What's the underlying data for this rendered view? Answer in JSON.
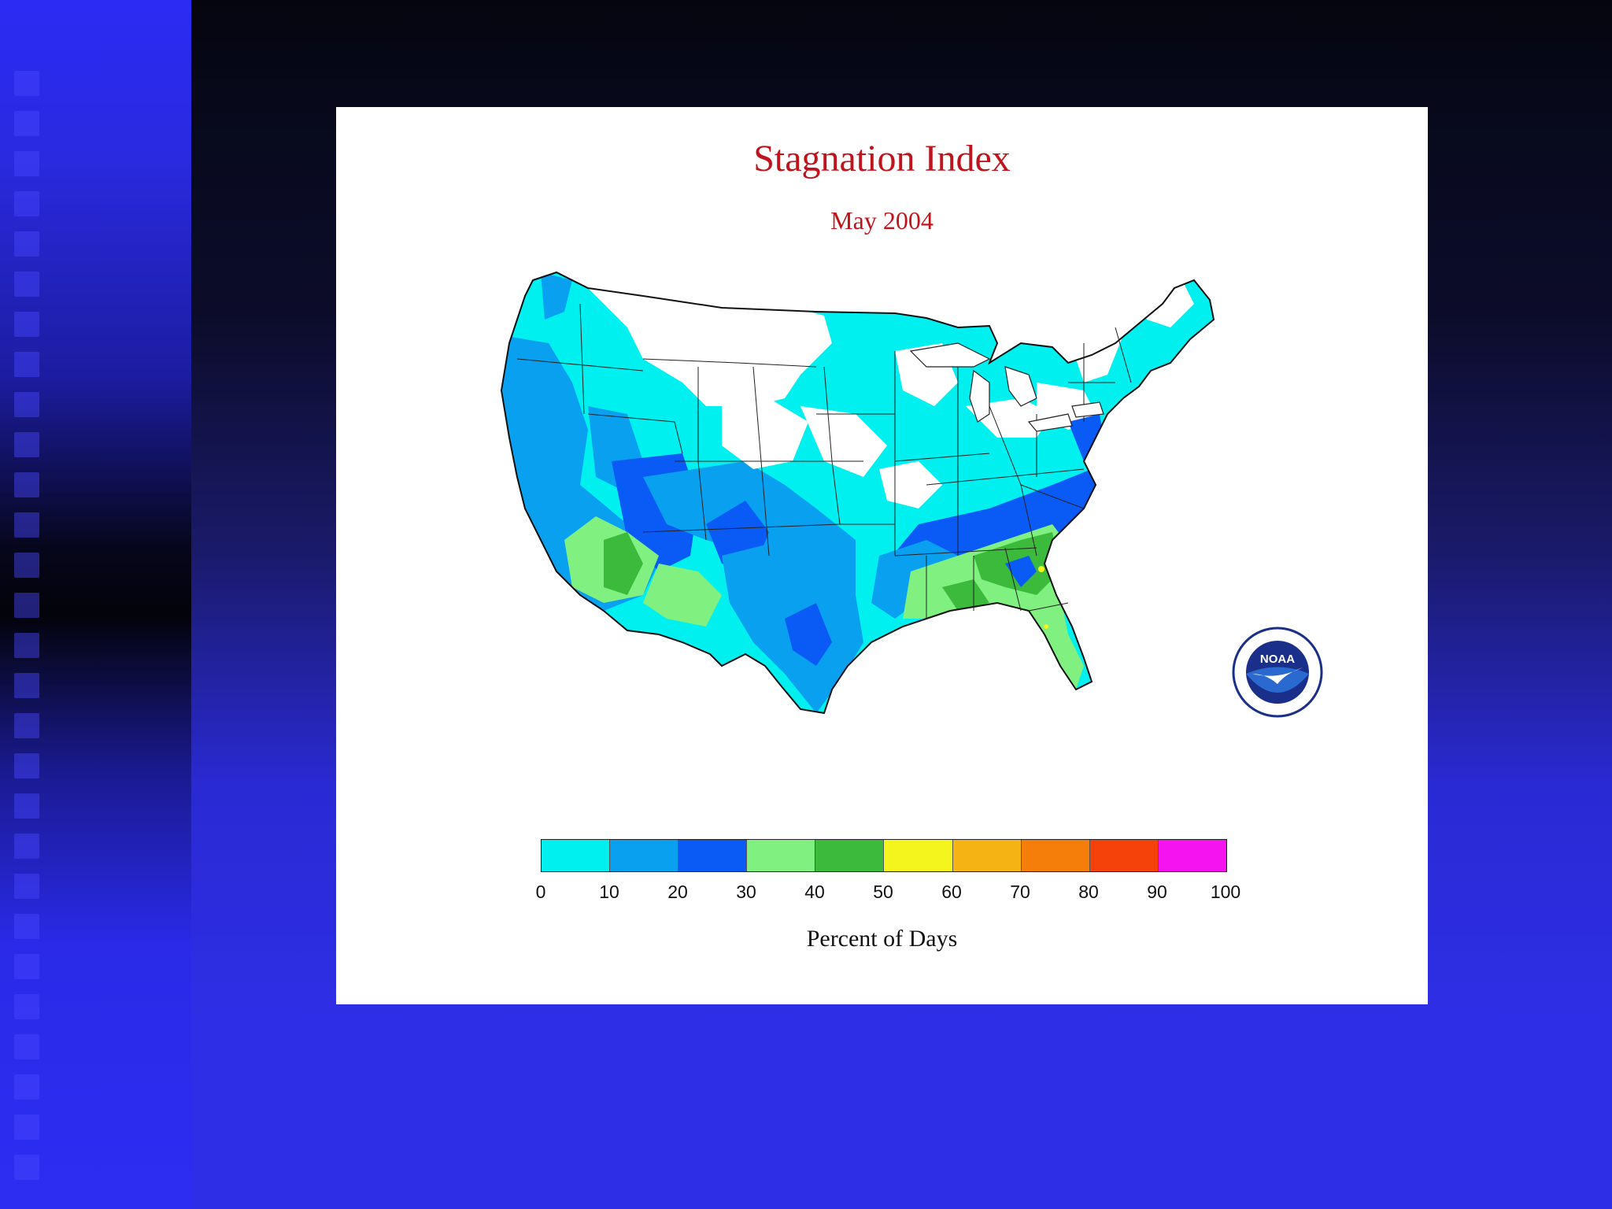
{
  "slide": {
    "background_colors": {
      "top": "#05050f",
      "bottom": "#2e2ee6",
      "strip": "#2b2bf4"
    }
  },
  "map": {
    "title": "Stagnation Index",
    "subtitle": "May 2004",
    "legend_label": "Percent of Days",
    "region": "Contiguous United States",
    "logo_text": "NOAA",
    "colors": {
      "title": "#c0141c",
      "no_data_white": "#ffffff",
      "border": "#111111"
    },
    "colorbar": {
      "ticks": [
        "0",
        "10",
        "20",
        "30",
        "40",
        "50",
        "60",
        "70",
        "80",
        "90",
        "100"
      ],
      "bins": [
        {
          "range": "0-10",
          "color": "#00f0f0"
        },
        {
          "range": "10-20",
          "color": "#0aa0f0"
        },
        {
          "range": "20-30",
          "color": "#0a5af5"
        },
        {
          "range": "30-40",
          "color": "#80f080"
        },
        {
          "range": "40-50",
          "color": "#3cba3c"
        },
        {
          "range": "50-60",
          "color": "#f5f51e"
        },
        {
          "range": "60-70",
          "color": "#f5b414"
        },
        {
          "range": "70-80",
          "color": "#f57d0a"
        },
        {
          "range": "80-90",
          "color": "#f5410a"
        },
        {
          "range": "90-100",
          "color": "#f514f0"
        }
      ]
    }
  }
}
